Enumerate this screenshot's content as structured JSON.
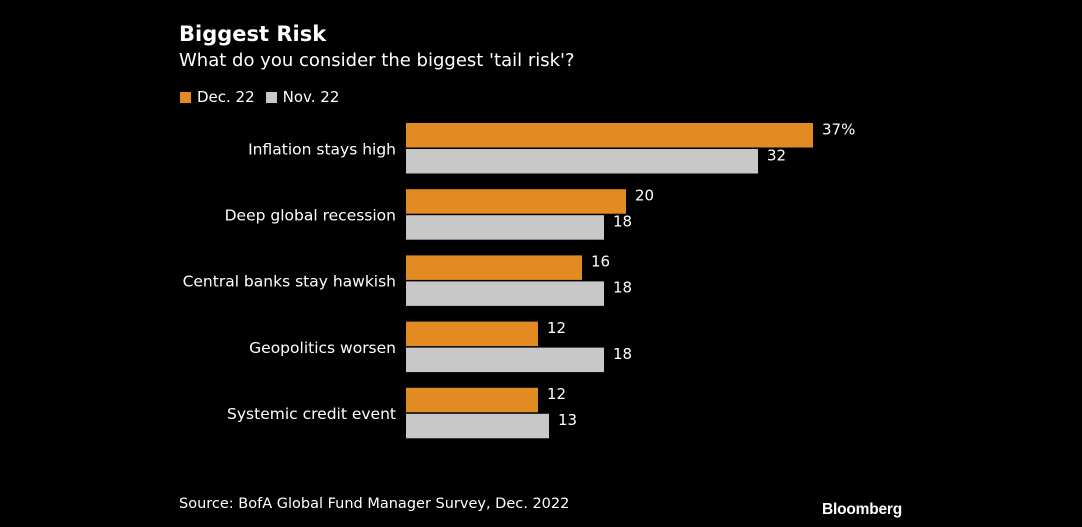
{
  "colors": {
    "background": "#000000",
    "dec22": "#E38B23",
    "nov22": "#C8C8C8",
    "text": "#FFFFFF"
  },
  "footer": {
    "source": "Source: BofA Global Fund Manager Survey, Dec. 2022",
    "brand": "Bloomberg"
  },
  "chart_data": {
    "type": "bar",
    "orientation": "horizontal",
    "title": "Biggest Risk",
    "subtitle": "What do you consider the biggest 'tail risk'?",
    "categories": [
      "Inflation stays high",
      "Deep global recession",
      "Central banks stay hawkish",
      "Geopolitics worsen",
      "Systemic credit event"
    ],
    "series": [
      {
        "name": "Dec. 22",
        "values": [
          37,
          20,
          16,
          12,
          12
        ]
      },
      {
        "name": "Nov. 22",
        "values": [
          32,
          18,
          18,
          18,
          13
        ]
      }
    ],
    "data_labels": [
      [
        "37%",
        "20",
        "16",
        "12",
        "12"
      ],
      [
        "32",
        "18",
        "18",
        "18",
        "13"
      ]
    ],
    "xlim": [
      0,
      37
    ],
    "grid": false,
    "legend": "top-left"
  }
}
